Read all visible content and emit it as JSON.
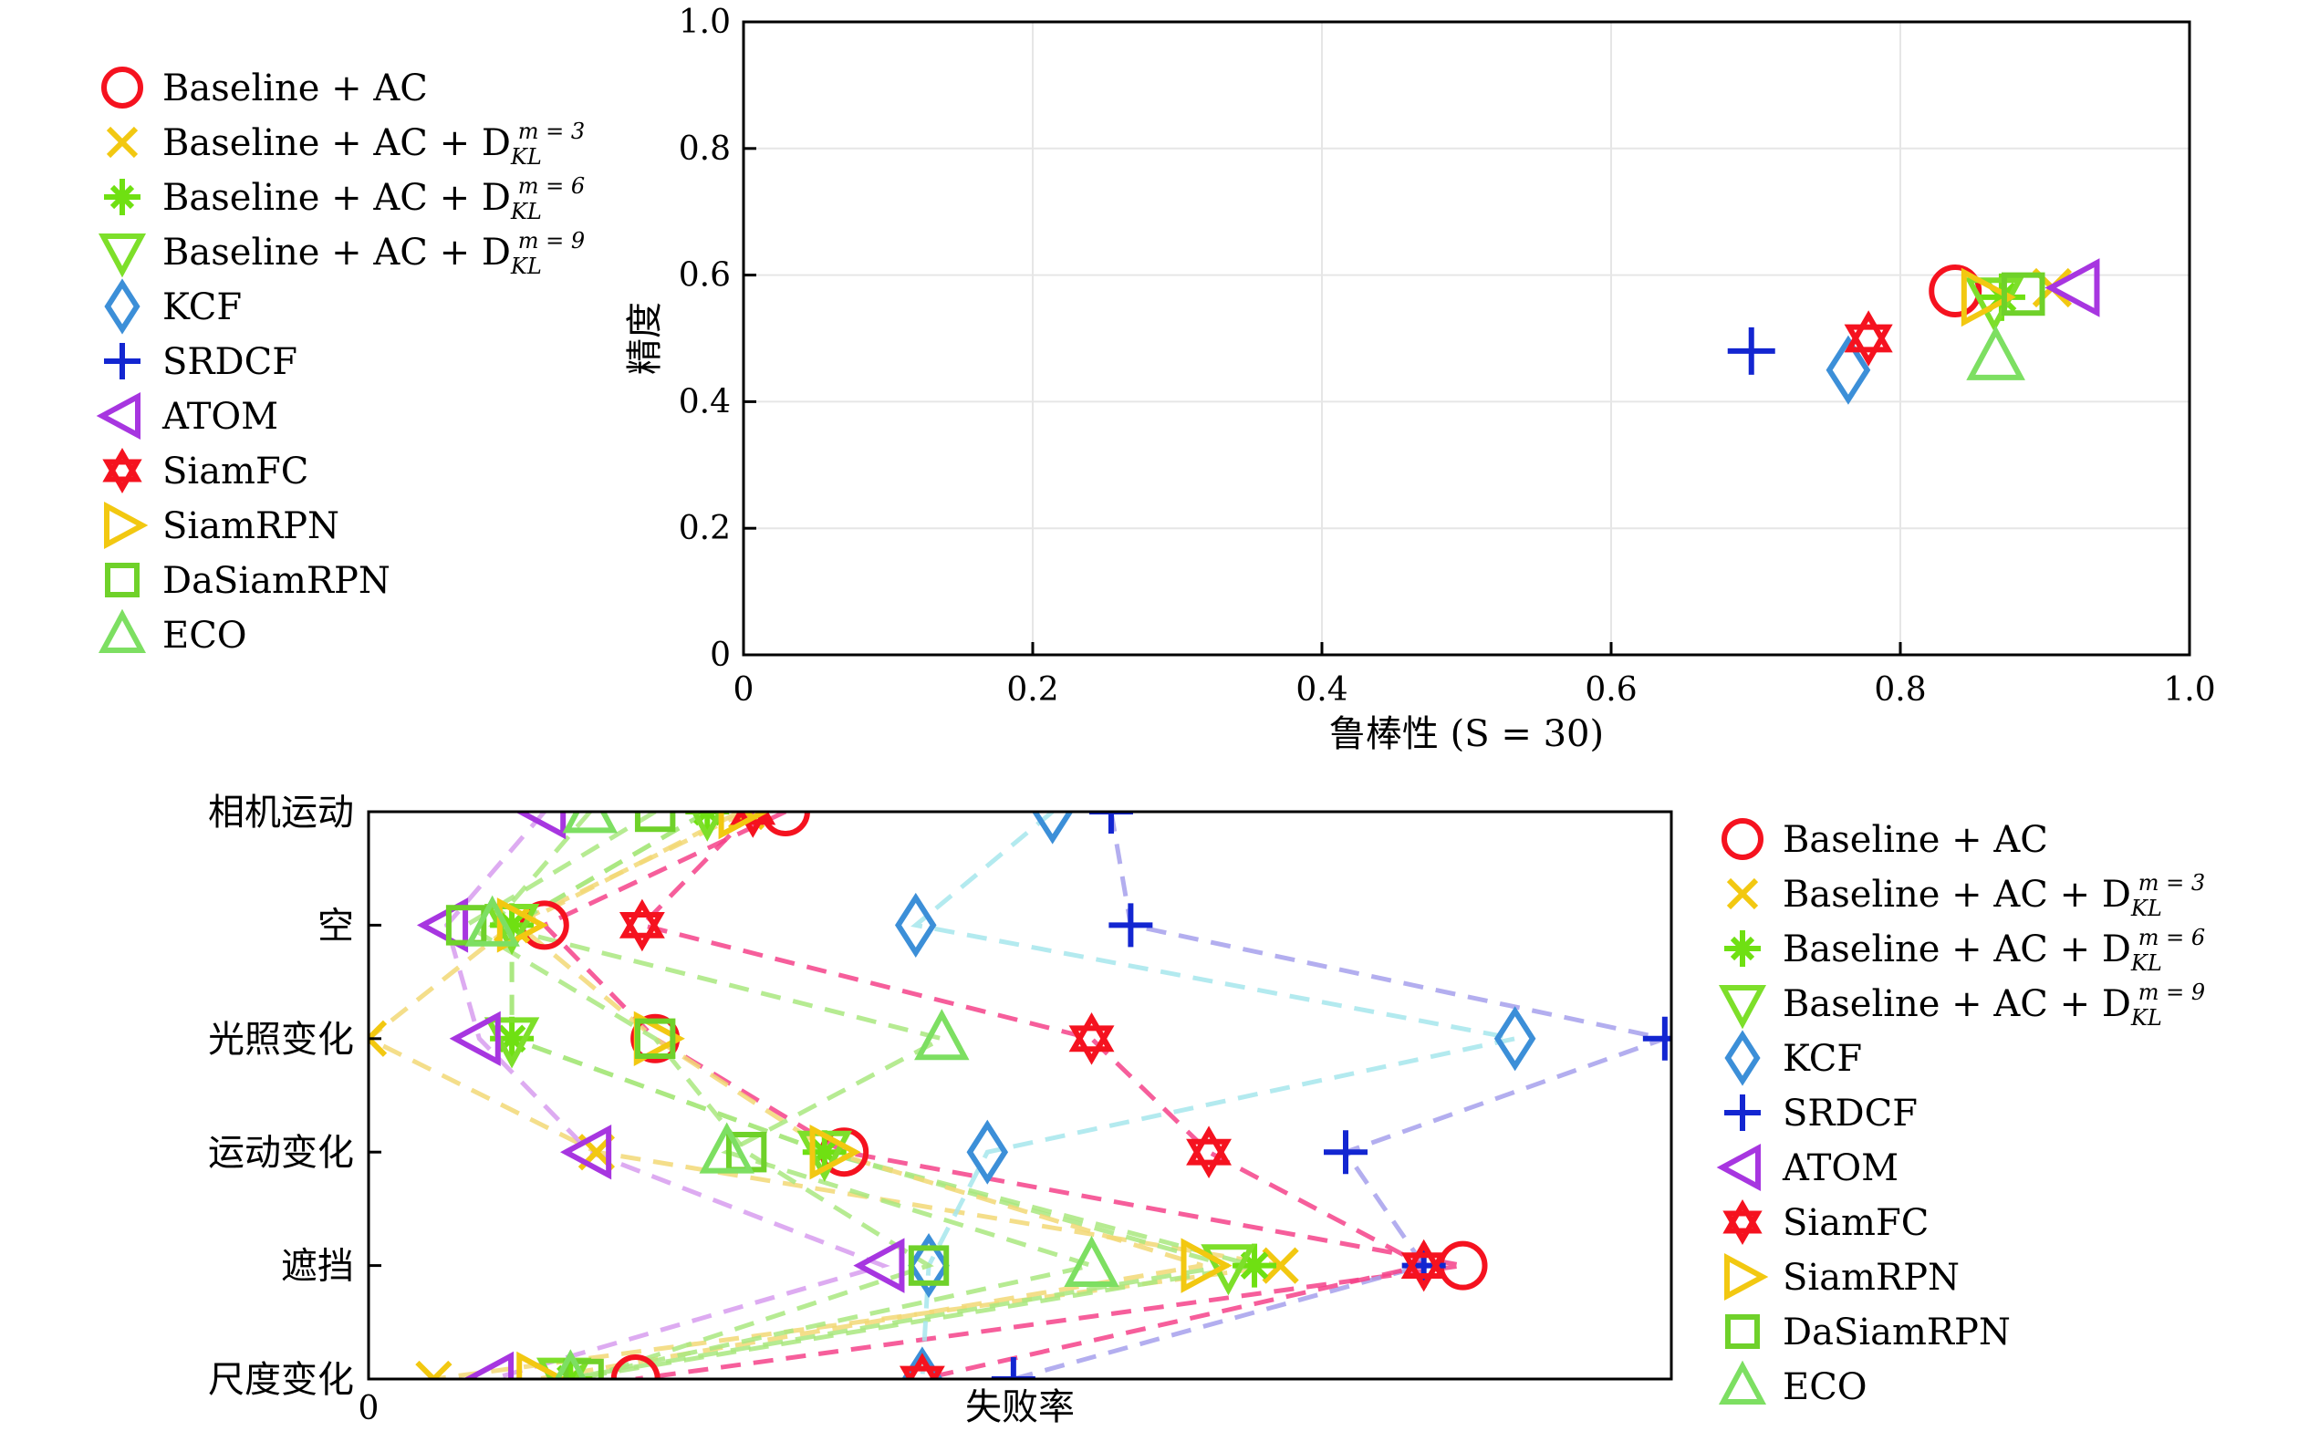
{
  "colors": {
    "Baseline + AC": "#f5121f",
    "Baseline + AC + DKL3": "#f2c811",
    "Baseline + AC + DKL6": "#6fe012",
    "Baseline + AC + DKL9": "#7ddf2a",
    "KCF": "#3c8fd8",
    "SRDCF": "#1326d1",
    "ATOM": "#a736e0",
    "SiamFC": "#f5121f",
    "SiamRPN": "#f2c811",
    "DaSiamRPN": "#6fd12a",
    "ECO": "#7ddf62"
  },
  "chart_data": [
    {
      "type": "scatter",
      "xlabel": "鲁棒性 (S = 30)",
      "ylabel": "精度",
      "xlim": [
        0,
        1.0
      ],
      "ylim": [
        0,
        1.0
      ],
      "x_ticks": [
        "0",
        "0.2",
        "0.4",
        "0.6",
        "0.8",
        "1.0"
      ],
      "y_ticks": [
        "0",
        "0.2",
        "0.4",
        "0.6",
        "0.8",
        "1.0"
      ],
      "grid": true,
      "legend_position": "left, outside",
      "legend": [
        {
          "label": "Baseline + AC",
          "sup": "",
          "marker": "circle-icon",
          "color": "#f5121f"
        },
        {
          "label": "Baseline + AC + D",
          "sub": "KL",
          "sup": "m = 3",
          "marker": "x-icon",
          "color": "#f2c811"
        },
        {
          "label": "Baseline + AC + D",
          "sub": "KL",
          "sup": "m = 6",
          "marker": "asterisk-icon",
          "color": "#6fe012"
        },
        {
          "label": "Baseline + AC + D",
          "sub": "KL",
          "sup": "m = 9",
          "marker": "triangle-down-icon",
          "color": "#7ddf2a"
        },
        {
          "label": "KCF",
          "sup": "",
          "marker": "diamond-icon",
          "color": "#3c8fd8"
        },
        {
          "label": "SRDCF",
          "sup": "",
          "marker": "plus-icon",
          "color": "#1326d1"
        },
        {
          "label": "ATOM",
          "sup": "",
          "marker": "triangle-left-icon",
          "color": "#a736e0"
        },
        {
          "label": "SiamFC",
          "sup": "",
          "marker": "hexagram-icon",
          "color": "#f5121f"
        },
        {
          "label": "SiamRPN",
          "sup": "",
          "marker": "triangle-right-icon",
          "color": "#f2c811"
        },
        {
          "label": "DaSiamRPN",
          "sup": "",
          "marker": "square-icon",
          "color": "#6fd12a"
        },
        {
          "label": "ECO",
          "sup": "",
          "marker": "triangle-up-icon",
          "color": "#7ddf62"
        }
      ],
      "points": [
        {
          "series": "Baseline + AC",
          "marker": "circle-icon",
          "color": "#f5121f",
          "x": 0.838,
          "y": 0.575
        },
        {
          "series": "Baseline + AC + DKL3",
          "marker": "x-icon",
          "color": "#f2c811",
          "x": 0.905,
          "y": 0.58
        },
        {
          "series": "Baseline + AC + DKL6",
          "marker": "asterisk-icon",
          "color": "#6fe012",
          "x": 0.87,
          "y": 0.565
        },
        {
          "series": "Baseline + AC + DKL9",
          "marker": "triangle-down-icon",
          "color": "#7ddf2a",
          "x": 0.865,
          "y": 0.56
        },
        {
          "series": "KCF",
          "marker": "diamond-icon",
          "color": "#3c8fd8",
          "x": 0.764,
          "y": 0.45
        },
        {
          "series": "SRDCF",
          "marker": "plus-icon",
          "color": "#1326d1",
          "x": 0.697,
          "y": 0.48
        },
        {
          "series": "ATOM",
          "marker": "triangle-left-icon",
          "color": "#a736e0",
          "x": 0.922,
          "y": 0.58
        },
        {
          "series": "SiamFC",
          "marker": "hexagram-icon",
          "color": "#f5121f",
          "x": 0.778,
          "y": 0.5
        },
        {
          "series": "SiamRPN",
          "marker": "triangle-right-icon",
          "color": "#f2c811",
          "x": 0.858,
          "y": 0.565
        },
        {
          "series": "DaSiamRPN",
          "marker": "square-icon",
          "color": "#6fd12a",
          "x": 0.885,
          "y": 0.57
        },
        {
          "series": "ECO",
          "marker": "triangle-up-icon",
          "color": "#7ddf62",
          "x": 0.866,
          "y": 0.47
        }
      ]
    },
    {
      "type": "line",
      "xlabel": "失败率",
      "x_ticks": [
        "0"
      ],
      "xlim": [
        0,
        1.0
      ],
      "categories": [
        "相机运动",
        "空",
        "光照变化",
        "运动变化",
        "遮挡",
        "尺度变化"
      ],
      "grid": false,
      "legend_position": "right, outside",
      "series": [
        {
          "name": "Baseline + AC",
          "marker": "circle-icon",
          "color": "#f5121f",
          "line_color": "#f5428a",
          "values": [
            0.32,
            0.135,
            0.22,
            0.365,
            0.84,
            0.205
          ]
        },
        {
          "name": "Baseline + AC + DKL3",
          "marker": "x-icon",
          "color": "#f2c811",
          "line_color": "#f2d875",
          "values": [
            0.29,
            0.11,
            0.0,
            0.175,
            0.7,
            0.05
          ]
        },
        {
          "name": "Baseline + AC + DKL6",
          "marker": "asterisk-icon",
          "color": "#6fe012",
          "line_color": "#a9e87f",
          "values": [
            0.26,
            0.11,
            0.11,
            0.35,
            0.68,
            0.155
          ]
        },
        {
          "name": "Baseline + AC + DKL9",
          "marker": "triangle-down-icon",
          "color": "#7ddf2a",
          "line_color": "#a9e87f",
          "values": [
            0.26,
            0.11,
            0.11,
            0.35,
            0.66,
            0.15
          ]
        },
        {
          "name": "KCF",
          "marker": "diamond-icon",
          "color": "#3c8fd8",
          "line_color": "#a6e6ec",
          "values": [
            0.525,
            0.42,
            0.88,
            0.475,
            0.43,
            0.425
          ]
        },
        {
          "name": "SRDCF",
          "marker": "plus-icon",
          "color": "#1326d1",
          "line_color": "#a6a0ec",
          "values": [
            0.57,
            0.585,
            0.995,
            0.75,
            0.81,
            0.495
          ]
        },
        {
          "name": "ATOM",
          "marker": "triangle-left-icon",
          "color": "#a736e0",
          "line_color": "#d79cef",
          "values": [
            0.135,
            0.06,
            0.085,
            0.17,
            0.395,
            0.095
          ]
        },
        {
          "name": "SiamFC",
          "marker": "hexagram-icon",
          "color": "#f5121f",
          "line_color": "#f5428a",
          "values": [
            0.295,
            0.21,
            0.555,
            0.645,
            0.81,
            0.425
          ]
        },
        {
          "name": "SiamRPN",
          "marker": "triangle-right-icon",
          "color": "#f2c811",
          "line_color": "#f2d875",
          "values": [
            0.285,
            0.115,
            0.22,
            0.355,
            0.64,
            0.13
          ]
        },
        {
          "name": "DaSiamRPN",
          "marker": "square-icon",
          "color": "#6fd12a",
          "line_color": "#a9e87f",
          "values": [
            0.22,
            0.075,
            0.22,
            0.29,
            0.43,
            0.165
          ]
        },
        {
          "name": "ECO",
          "marker": "triangle-up-icon",
          "color": "#7ddf62",
          "line_color": "#a9e87f",
          "values": [
            0.17,
            0.095,
            0.44,
            0.275,
            0.555,
            0.155
          ]
        }
      ],
      "legend": [
        {
          "label": "Baseline + AC",
          "sup": "",
          "marker": "circle-icon",
          "color": "#f5121f"
        },
        {
          "label": "Baseline + AC + D",
          "sub": "KL",
          "sup": "m = 3",
          "marker": "x-icon",
          "color": "#f2c811"
        },
        {
          "label": "Baseline + AC + D",
          "sub": "KL",
          "sup": "m = 6",
          "marker": "asterisk-icon",
          "color": "#6fe012"
        },
        {
          "label": "Baseline + AC + D",
          "sub": "KL",
          "sup": "m = 9",
          "marker": "triangle-down-icon",
          "color": "#7ddf2a"
        },
        {
          "label": "KCF",
          "sup": "",
          "marker": "diamond-icon",
          "color": "#3c8fd8"
        },
        {
          "label": "SRDCF",
          "sup": "",
          "marker": "plus-icon",
          "color": "#1326d1"
        },
        {
          "label": "ATOM",
          "sup": "",
          "marker": "triangle-left-icon",
          "color": "#a736e0"
        },
        {
          "label": "SiamFC",
          "sup": "",
          "marker": "hexagram-icon",
          "color": "#f5121f"
        },
        {
          "label": "SiamRPN",
          "sup": "",
          "marker": "triangle-right-icon",
          "color": "#f2c811"
        },
        {
          "label": "DaSiamRPN",
          "sup": "",
          "marker": "square-icon",
          "color": "#6fd12a"
        },
        {
          "label": "ECO",
          "sup": "",
          "marker": "triangle-up-icon",
          "color": "#7ddf62"
        }
      ]
    }
  ]
}
